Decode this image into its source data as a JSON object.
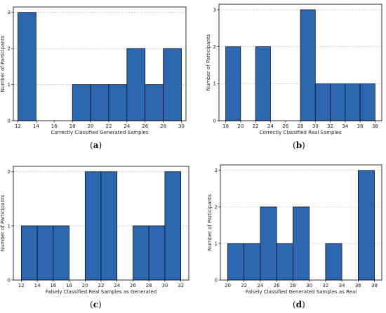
{
  "chart_data": [
    {
      "type": "bar",
      "caption": "a",
      "xlabel": "Correctly Classified Generated Samples",
      "ylabel": "Number of Participants",
      "xlim": [
        11.5,
        30.5
      ],
      "ylim": [
        0,
        3.15
      ],
      "xticks": [
        12,
        14,
        16,
        18,
        20,
        22,
        24,
        26,
        28,
        30
      ],
      "yticks": [
        0,
        1,
        2,
        3
      ],
      "grid": "y-dashed",
      "bins": [
        {
          "x0": 12,
          "x1": 14,
          "value": 3
        },
        {
          "x0": 18,
          "x1": 20,
          "value": 1
        },
        {
          "x0": 20,
          "x1": 22,
          "value": 1
        },
        {
          "x0": 22,
          "x1": 24,
          "value": 1
        },
        {
          "x0": 24,
          "x1": 26,
          "value": 2
        },
        {
          "x0": 26,
          "x1": 28,
          "value": 1
        },
        {
          "x0": 28,
          "x1": 30,
          "value": 2
        }
      ]
    },
    {
      "type": "bar",
      "caption": "b",
      "xlabel": "Correctly Classified Real Samples",
      "ylabel": "Number of Participants",
      "xlim": [
        17.1,
        38.9
      ],
      "ylim": [
        0,
        3.15
      ],
      "xticks": [
        18,
        20,
        22,
        24,
        26,
        28,
        30,
        32,
        34,
        36,
        38
      ],
      "yticks": [
        0,
        1,
        2,
        3
      ],
      "grid": "y-dashed",
      "bins": [
        {
          "x0": 18,
          "x1": 20,
          "value": 2
        },
        {
          "x0": 22,
          "x1": 24,
          "value": 2
        },
        {
          "x0": 28,
          "x1": 30,
          "value": 3
        },
        {
          "x0": 30,
          "x1": 32,
          "value": 1
        },
        {
          "x0": 32,
          "x1": 34,
          "value": 1
        },
        {
          "x0": 34,
          "x1": 36,
          "value": 1
        },
        {
          "x0": 36,
          "x1": 38,
          "value": 1
        }
      ]
    },
    {
      "type": "bar",
      "caption": "c",
      "xlabel": "Falsely Classified Real Samples as Generated",
      "ylabel": "Number of Participants",
      "xlim": [
        11.0,
        33.0
      ],
      "ylim": [
        0,
        2.1
      ],
      "xticks": [
        12,
        14,
        16,
        18,
        20,
        22,
        24,
        26,
        28,
        30,
        32
      ],
      "yticks": [
        0,
        1,
        2
      ],
      "grid": "y-dashed",
      "bins": [
        {
          "x0": 12,
          "x1": 14,
          "value": 1
        },
        {
          "x0": 14,
          "x1": 16,
          "value": 1
        },
        {
          "x0": 16,
          "x1": 18,
          "value": 1
        },
        {
          "x0": 20,
          "x1": 22,
          "value": 2
        },
        {
          "x0": 22,
          "x1": 24,
          "value": 2
        },
        {
          "x0": 26,
          "x1": 28,
          "value": 1
        },
        {
          "x0": 28,
          "x1": 30,
          "value": 1
        },
        {
          "x0": 30,
          "x1": 32,
          "value": 2
        }
      ]
    },
    {
      "type": "bar",
      "caption": "d",
      "xlabel": "Falsely Classified Generated Samples as Real",
      "ylabel": "Number of Participants",
      "xlim": [
        19.1,
        38.9
      ],
      "ylim": [
        0,
        3.15
      ],
      "xticks": [
        20,
        22,
        24,
        26,
        28,
        30,
        32,
        34,
        36,
        38
      ],
      "yticks": [
        0,
        1,
        2,
        3
      ],
      "grid": "y-dashed",
      "bins": [
        {
          "x0": 20,
          "x1": 22,
          "value": 1
        },
        {
          "x0": 22,
          "x1": 24,
          "value": 1
        },
        {
          "x0": 24,
          "x1": 26,
          "value": 2
        },
        {
          "x0": 26,
          "x1": 28,
          "value": 1
        },
        {
          "x0": 28,
          "x1": 30,
          "value": 2
        },
        {
          "x0": 32,
          "x1": 34,
          "value": 1
        },
        {
          "x0": 36,
          "x1": 38,
          "value": 3
        }
      ]
    }
  ],
  "colors": {
    "bar_fill": "#2d67b0",
    "bar_edge": "#000000",
    "grid": "#b8b8b8",
    "axis": "#000000"
  }
}
